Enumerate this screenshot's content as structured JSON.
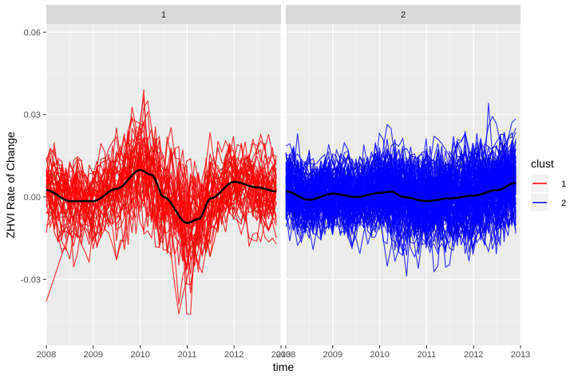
{
  "chart_data": {
    "type": "line",
    "xlabel": "time",
    "ylabel": "ZHVI Rate of Change",
    "xlim": [
      2008,
      2013
    ],
    "ylim": [
      -0.054,
      0.063
    ],
    "x_ticks": [
      2008,
      2009,
      2010,
      2011,
      2012,
      2013
    ],
    "x_tick_labels": [
      "2008",
      "2009",
      "2010",
      "2011",
      "2012",
      "2013"
    ],
    "y_ticks": [
      -0.03,
      0.0,
      0.03,
      0.06
    ],
    "y_tick_labels": [
      "-0.03",
      "0.00",
      "0.03",
      "0.06"
    ],
    "grid": true,
    "legend": {
      "title": "clust",
      "position": "right",
      "entries": [
        {
          "label": "1",
          "color": "#ff0000"
        },
        {
          "label": "2",
          "color": "#0000ff"
        }
      ]
    },
    "panels": [
      {
        "strip_label": "1",
        "series_color": "#ff0000",
        "n_lines": 40,
        "amplitude": 0.008,
        "smooth_trend": {
          "x": [
            2008.0,
            2008.5,
            2009.0,
            2009.5,
            2010.0,
            2010.25,
            2010.5,
            2011.0,
            2011.25,
            2011.5,
            2012.0,
            2012.5,
            2012.9
          ],
          "y": [
            0.0025,
            -0.0015,
            -0.0015,
            0.003,
            0.0098,
            0.008,
            0.0,
            -0.0095,
            -0.008,
            -0.0005,
            0.0055,
            0.0035,
            0.002
          ]
        }
      },
      {
        "strip_label": "2",
        "series_color": "#0000ff",
        "n_lines": 110,
        "amplitude": 0.007,
        "smooth_trend": {
          "x": [
            2008.0,
            2008.5,
            2009.0,
            2009.5,
            2010.0,
            2010.25,
            2010.5,
            2011.0,
            2011.5,
            2012.0,
            2012.5,
            2012.9
          ],
          "y": [
            0.002,
            -0.001,
            0.0012,
            0.0,
            0.0015,
            0.002,
            0.0,
            -0.0015,
            -0.0005,
            0.0005,
            0.0025,
            0.0052
          ]
        }
      }
    ]
  }
}
